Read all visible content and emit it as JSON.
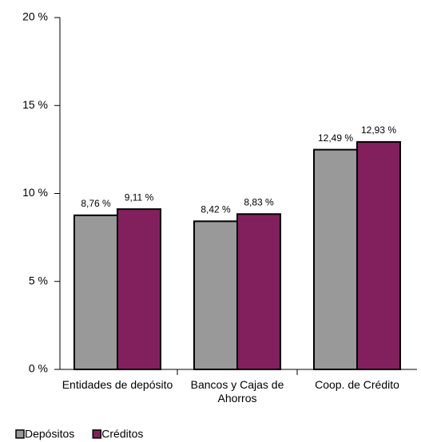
{
  "chart_data": {
    "type": "bar",
    "categories": [
      "Entidades de depósito",
      "Bancos y Cajas de Ahorros",
      "Coop. de Crédito"
    ],
    "series": [
      {
        "name": "Depósitos",
        "color": "#999999",
        "values": [
          8.76,
          8.42,
          12.49
        ],
        "value_labels": [
          "8,76 %",
          "8,42 %",
          "12,49 %"
        ]
      },
      {
        "name": "Créditos",
        "color": "#82205e",
        "values": [
          9.11,
          8.83,
          12.93
        ],
        "value_labels": [
          "9,11 %",
          "8,83 %",
          "12,93 %"
        ]
      }
    ],
    "ylim": [
      0,
      20
    ],
    "yticks": [
      {
        "value": 0,
        "label": "0 %"
      },
      {
        "value": 5,
        "label": "5 %"
      },
      {
        "value": 10,
        "label": "10 %"
      },
      {
        "value": 15,
        "label": "15 %"
      },
      {
        "value": 20,
        "label": "20 %"
      }
    ],
    "grid": false,
    "legend": "bottom-left"
  }
}
